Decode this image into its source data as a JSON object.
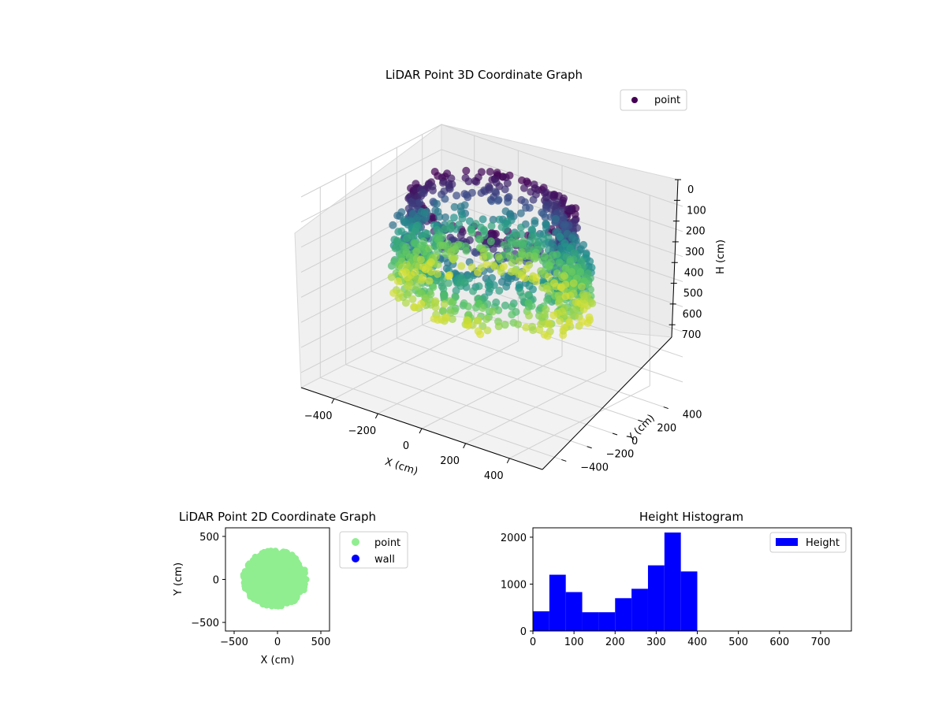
{
  "chart_data": [
    {
      "type": "scatter",
      "title": "LiDAR Point 3D Coordinate Graph",
      "xlabel": "X (cm)",
      "ylabel": "Y (cm)",
      "zlabel": "H (cm)",
      "xticks": [
        "−400",
        "−200",
        "0",
        "200",
        "400"
      ],
      "yticks": [
        "−400",
        "−200",
        "0",
        "200",
        "400"
      ],
      "zticks": [
        "0",
        "100",
        "200",
        "300",
        "400",
        "500",
        "600",
        "700"
      ],
      "xlim": [
        -550,
        550
      ],
      "ylim": [
        -550,
        550
      ],
      "zlim": [
        0,
        760
      ],
      "z_inverted": true,
      "legend": {
        "placement": "upper-right",
        "entries": [
          {
            "label": "point",
            "color": "#440154"
          }
        ]
      },
      "colormap": "viridis",
      "grid": true,
      "series": [
        {
          "name": "point",
          "description_shape": "ring top at H≈0-100 with radius ≈320, denser cloud below to H≈400",
          "sample_ring": {
            "radius": 320,
            "h_top": 0,
            "h_ring": 60
          },
          "cloud": {
            "radius": 400,
            "h_min": 150,
            "h_max": 400
          }
        }
      ]
    },
    {
      "type": "scatter",
      "title": "LiDAR Point 2D Coordinate Graph",
      "xlabel": "X (cm)",
      "ylabel": "Y (cm)",
      "xticks": [
        "−500",
        "0",
        "500"
      ],
      "yticks": [
        "500",
        "0",
        "−500"
      ],
      "xlim": [
        -600,
        600
      ],
      "ylim": [
        -600,
        600
      ],
      "legend": {
        "placement": "right-outside",
        "entries": [
          {
            "label": "point",
            "color": "#90ee90"
          },
          {
            "label": "wall",
            "color": "#0000ff"
          }
        ]
      },
      "series": [
        {
          "name": "point",
          "color": "#90ee90",
          "blob": {
            "cx": -30,
            "cy": 10,
            "rx": 370,
            "ry": 330
          }
        },
        {
          "name": "wall",
          "color": "#0000ff",
          "points": []
        }
      ]
    },
    {
      "type": "bar",
      "title": "Height Histogram",
      "xlabel": "",
      "ylabel": "",
      "xticks": [
        "0",
        "100",
        "200",
        "300",
        "400",
        "500",
        "600",
        "700"
      ],
      "yticks": [
        "0",
        "1000",
        "2000"
      ],
      "xlim": [
        0,
        775
      ],
      "ylim": [
        0,
        2200
      ],
      "bin_width": 40,
      "bins": [
        0,
        40,
        80,
        120,
        160,
        200,
        240,
        280,
        320,
        360
      ],
      "values": [
        420,
        1200,
        830,
        400,
        400,
        700,
        900,
        1400,
        2100,
        1270
      ],
      "color": "#0000ff",
      "legend": {
        "placement": "upper-right",
        "entries": [
          {
            "label": "Height",
            "color": "#0000ff"
          }
        ]
      }
    }
  ]
}
